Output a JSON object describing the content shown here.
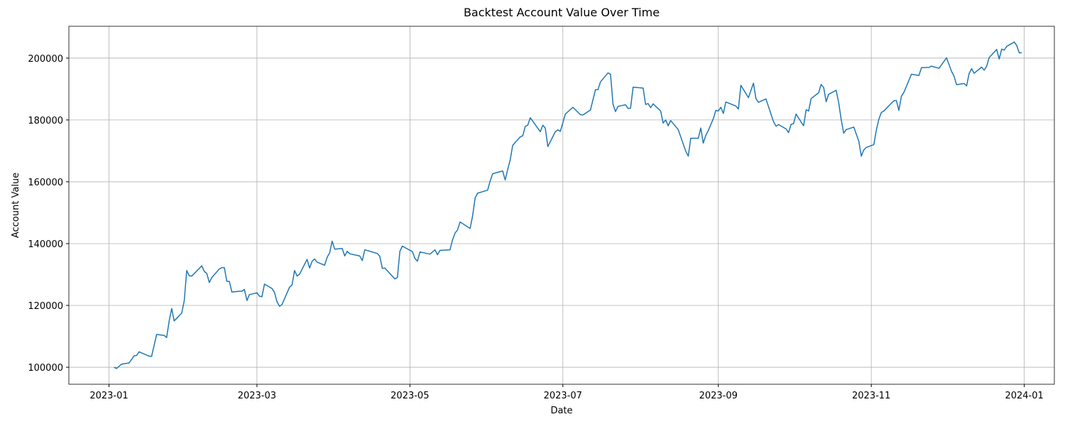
{
  "chart_data": {
    "type": "line",
    "title": "Backtest Account Value Over Time",
    "x_label": "Date",
    "y_label": "Account Value",
    "x": [
      2,
      3,
      5,
      8,
      9,
      10,
      11,
      12,
      16,
      17,
      19,
      22,
      23,
      24,
      25,
      26,
      29,
      30,
      31,
      32,
      33,
      37,
      38,
      39,
      40,
      41,
      44,
      45,
      46,
      47,
      48,
      49,
      52,
      53,
      54,
      55,
      56,
      59,
      60,
      61,
      62,
      65,
      66,
      67,
      68,
      69,
      72,
      73,
      74,
      75,
      76,
      79,
      80,
      81,
      82,
      83,
      86,
      87,
      88,
      89,
      90,
      93,
      94,
      95,
      96,
      100,
      101,
      102,
      107,
      108,
      109,
      110,
      114,
      115,
      116,
      117,
      121,
      122,
      123,
      124,
      128,
      130,
      131,
      132,
      136,
      137,
      138,
      139,
      140,
      144,
      145,
      146,
      147,
      151,
      152,
      153,
      156,
      157,
      158,
      159,
      160,
      161,
      164,
      165,
      166,
      167,
      168,
      172,
      173,
      174,
      175,
      178,
      179,
      180,
      182,
      185,
      186,
      188,
      189,
      192,
      194,
      195,
      196,
      199,
      200,
      201,
      202,
      203,
      206,
      207,
      208,
      209,
      213,
      214,
      215,
      216,
      217,
      220,
      221,
      222,
      223,
      224,
      227,
      230,
      231,
      232,
      235,
      236,
      237,
      238,
      239,
      241,
      242,
      243,
      244,
      245,
      246,
      250,
      251,
      252,
      255,
      257,
      258,
      259,
      262,
      264,
      265,
      266,
      267,
      270,
      271,
      272,
      273,
      274,
      277,
      278,
      279,
      280,
      283,
      284,
      285,
      286,
      287,
      290,
      291,
      292,
      293,
      294,
      297,
      299,
      300,
      301,
      302,
      305,
      306,
      307,
      308,
      309,
      312,
      313,
      314,
      315,
      316,
      317,
      320,
      323,
      324,
      327,
      328,
      331,
      334,
      335,
      336,
      337,
      338,
      341,
      342,
      343,
      344,
      345,
      348,
      349,
      350,
      351,
      354,
      355,
      356,
      357,
      358,
      361,
      362,
      363,
      364
    ],
    "series": [
      {
        "name": "Account Value",
        "color": "#1f77b4",
        "values": [
          100000,
          99600,
          101000,
          101400,
          102500,
          103700,
          103800,
          105000,
          103600,
          103500,
          110600,
          110300,
          109600,
          115000,
          119000,
          115000,
          117500,
          121500,
          131300,
          129600,
          129500,
          132800,
          131000,
          130400,
          127400,
          129000,
          131800,
          132200,
          132200,
          127800,
          127800,
          124300,
          124600,
          124600,
          125200,
          121600,
          123500,
          124100,
          123000,
          122800,
          126900,
          125500,
          124200,
          121200,
          119700,
          120300,
          125900,
          126600,
          131300,
          129500,
          130100,
          134900,
          132100,
          134300,
          135000,
          134000,
          133000,
          135600,
          137000,
          140800,
          138200,
          138400,
          136000,
          137500,
          136700,
          136000,
          134500,
          138000,
          136800,
          135900,
          132000,
          132100,
          128600,
          129000,
          137500,
          139200,
          137400,
          135200,
          134300,
          137300,
          136600,
          138000,
          136400,
          137800,
          138000,
          141200,
          143400,
          144400,
          147000,
          144900,
          148900,
          154800,
          156300,
          157300,
          160200,
          162600,
          163300,
          163500,
          160600,
          164000,
          167100,
          171800,
          174500,
          174900,
          177900,
          178300,
          180700,
          176200,
          178300,
          177400,
          171400,
          176200,
          176800,
          176300,
          181900,
          184100,
          183300,
          181700,
          181600,
          183200,
          189800,
          189800,
          192300,
          195200,
          194800,
          185100,
          182700,
          184400,
          184900,
          183700,
          183800,
          190600,
          190300,
          185000,
          185300,
          184000,
          185200,
          182900,
          179000,
          180000,
          178100,
          179800,
          176900,
          169900,
          168300,
          174100,
          174100,
          177400,
          172500,
          175000,
          176600,
          180400,
          183100,
          182900,
          184100,
          182100,
          185800,
          184500,
          183500,
          191200,
          187200,
          191900,
          186900,
          185700,
          186800,
          181900,
          179500,
          178000,
          178500,
          177100,
          175900,
          178600,
          178800,
          181900,
          178100,
          183300,
          182900,
          186900,
          188800,
          191500,
          190500,
          185900,
          188300,
          189600,
          185500,
          180100,
          175700,
          176900,
          177700,
          173200,
          168300,
          170300,
          171100,
          172000,
          176600,
          180200,
          182400,
          182900,
          185400,
          186200,
          186300,
          183100,
          187700,
          188900,
          194800,
          194400,
          196900,
          197000,
          197400,
          196700,
          200100,
          197900,
          195700,
          194200,
          191400,
          191800,
          191000,
          195000,
          196600,
          195100,
          197100,
          196100,
          197300,
          200200,
          202800,
          199700,
          202900,
          202600,
          203800,
          205200,
          204100,
          201700,
          201700
        ]
      }
    ],
    "xlim": [
      -16,
      377
    ],
    "ylim": [
      94500,
      210300
    ],
    "xticks": [
      {
        "value": 0,
        "label": "2023-01"
      },
      {
        "value": 59,
        "label": "2023-03"
      },
      {
        "value": 120,
        "label": "2023-05"
      },
      {
        "value": 181,
        "label": "2023-07"
      },
      {
        "value": 243,
        "label": "2023-09"
      },
      {
        "value": 304,
        "label": "2023-11"
      },
      {
        "value": 365,
        "label": "2024-01"
      }
    ],
    "yticks": [
      100000,
      120000,
      140000,
      160000,
      180000,
      200000
    ],
    "grid": true
  }
}
